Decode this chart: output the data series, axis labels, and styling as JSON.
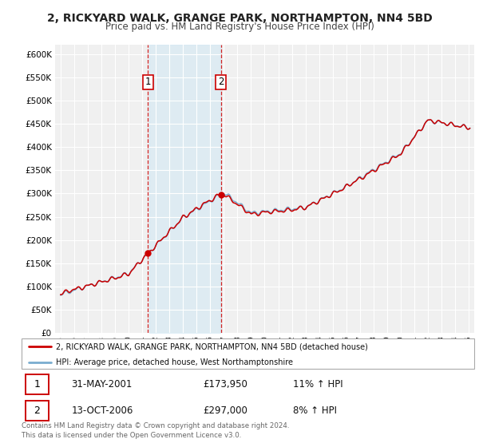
{
  "title": "2, RICKYARD WALK, GRANGE PARK, NORTHAMPTON, NN4 5BD",
  "subtitle": "Price paid vs. HM Land Registry's House Price Index (HPI)",
  "legend_line1": "2, RICKYARD WALK, GRANGE PARK, NORTHAMPTON, NN4 5BD (detached house)",
  "legend_line2": "HPI: Average price, detached house, West Northamptonshire",
  "sale1_date": "31-MAY-2001",
  "sale1_price": "£173,950",
  "sale1_hpi": "11% ↑ HPI",
  "sale2_date": "13-OCT-2006",
  "sale2_price": "£297,000",
  "sale2_hpi": "8% ↑ HPI",
  "footer": "Contains HM Land Registry data © Crown copyright and database right 2024.\nThis data is licensed under the Open Government Licence v3.0.",
  "red_line_color": "#cc0000",
  "blue_line_color": "#7aadcf",
  "shade_color": "#d0e8f5",
  "background_color": "#ffffff",
  "plot_bg_color": "#f0f0f0",
  "grid_color": "#ffffff",
  "sale1_x": 2001.42,
  "sale2_x": 2006.79,
  "ylim_min": 0,
  "ylim_max": 620000,
  "xlim_min": 1994.6,
  "xlim_max": 2025.4
}
